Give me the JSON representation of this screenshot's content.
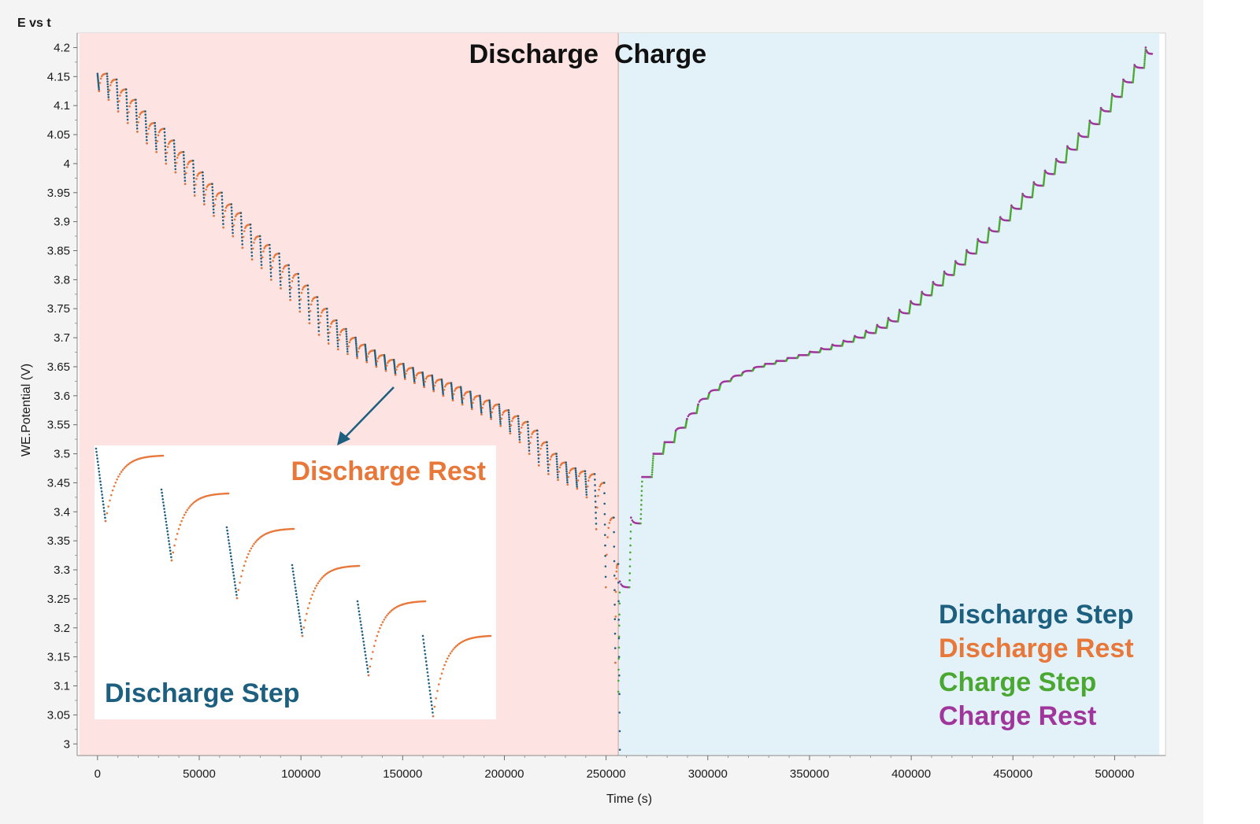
{
  "chart_data": {
    "type": "scatter",
    "title": "E vs t",
    "xlabel": "Time (s)",
    "ylabel": "WE.Potential (V)",
    "xlim": [
      -10000,
      525000
    ],
    "ylim": [
      2.98,
      4.225
    ],
    "xticks": [
      "0",
      "50000",
      "100000",
      "150000",
      "200000",
      "250000",
      "300000",
      "350000",
      "400000",
      "450000",
      "500000"
    ],
    "yticks": [
      "3",
      "3.05",
      "3.1",
      "3.15",
      "3.2",
      "3.25",
      "3.3",
      "3.35",
      "3.4",
      "3.45",
      "3.5",
      "3.55",
      "3.6",
      "3.65",
      "3.7",
      "3.75",
      "3.8",
      "3.85",
      "3.9",
      "3.95",
      "4",
      "4.05",
      "4.1",
      "4.15",
      "4.2"
    ],
    "regions": [
      {
        "label": "Discharge",
        "x": [
          -9000,
          256000
        ],
        "color": "#fde4e3"
      },
      {
        "label": "Charge",
        "x": [
          256000,
          522000
        ],
        "color": "#e3f2f9"
      }
    ],
    "series": [
      {
        "name": "Discharge Step",
        "color": "#1d5f7f",
        "x": [
          0,
          4700,
          9400,
          14100,
          18800,
          23500,
          28200,
          32900,
          37600,
          42300,
          47000,
          51700,
          56400,
          61100,
          65800,
          70500,
          75200,
          79900,
          84600,
          89300,
          94000,
          98700,
          103400,
          108100,
          112800,
          117500,
          122200,
          126900,
          131600,
          136300,
          141000,
          145700,
          150400,
          155100,
          159800,
          164500,
          169200,
          173900,
          178600,
          183300,
          188000,
          192700,
          197400,
          202100,
          206800,
          211500,
          216200,
          220900,
          225600,
          230300,
          235000,
          239700,
          244400,
          249100,
          253800,
          256000
        ],
        "y_rest_start": [
          4.155,
          4.145,
          4.128,
          4.11,
          4.09,
          4.07,
          4.06,
          4.04,
          4.02,
          4.005,
          3.985,
          3.965,
          3.95,
          3.93,
          3.915,
          3.895,
          3.875,
          3.86,
          3.845,
          3.825,
          3.81,
          3.79,
          3.77,
          3.75,
          3.73,
          3.715,
          3.7,
          3.688,
          3.678,
          3.67,
          3.662,
          3.655,
          3.648,
          3.64,
          3.635,
          3.628,
          3.622,
          3.615,
          3.607,
          3.6,
          3.592,
          3.585,
          3.575,
          3.565,
          3.555,
          3.54,
          3.52,
          3.5,
          3.485,
          3.475,
          3.47,
          3.465,
          3.45,
          3.39,
          3.31,
          3.18
        ],
        "y_step_end": [
          4.125,
          4.11,
          4.09,
          4.07,
          4.055,
          4.035,
          4.02,
          4.0,
          3.985,
          3.965,
          3.945,
          3.93,
          3.91,
          3.89,
          3.875,
          3.855,
          3.835,
          3.82,
          3.8,
          3.785,
          3.765,
          3.745,
          3.725,
          3.705,
          3.69,
          3.68,
          3.672,
          3.665,
          3.658,
          3.65,
          3.643,
          3.636,
          3.629,
          3.622,
          3.615,
          3.608,
          3.6,
          3.592,
          3.585,
          3.577,
          3.568,
          3.56,
          3.548,
          3.535,
          3.52,
          3.5,
          3.48,
          3.465,
          3.455,
          3.447,
          3.44,
          3.425,
          3.37,
          3.27,
          3.14,
          2.99
        ]
      },
      {
        "name": "Discharge Rest",
        "color": "#e8773a"
      },
      {
        "name": "Charge Step",
        "color": "#4aa832",
        "x": [
          256000,
          261500,
          267000,
          272500,
          278000,
          283500,
          289000,
          294500,
          300000,
          305500,
          311000,
          316500,
          322000,
          327500,
          333000,
          338500,
          344000,
          349500,
          355000,
          360500,
          366000,
          371500,
          377000,
          382500,
          388000,
          393500,
          399000,
          404500,
          410000,
          415500,
          421000,
          426500,
          432000,
          437500,
          443000,
          448500,
          454000,
          459500,
          465000,
          470500,
          476000,
          481500,
          487000,
          492500,
          498000,
          503500,
          509000,
          514500
        ],
        "y_rest_start": [
          3.09,
          3.27,
          3.38,
          3.46,
          3.5,
          3.52,
          3.545,
          3.57,
          3.595,
          3.61,
          3.625,
          3.635,
          3.643,
          3.65,
          3.655,
          3.66,
          3.665,
          3.67,
          3.675,
          3.68,
          3.686,
          3.693,
          3.7,
          3.708,
          3.717,
          3.728,
          3.742,
          3.757,
          3.773,
          3.79,
          3.808,
          3.826,
          3.845,
          3.864,
          3.883,
          3.902,
          3.922,
          3.942,
          3.962,
          3.982,
          4.002,
          4.024,
          4.046,
          4.068,
          4.09,
          4.115,
          4.14,
          4.165
        ],
        "y_step_end": [
          3.28,
          3.39,
          3.46,
          3.5,
          3.52,
          3.54,
          3.56,
          3.585,
          3.605,
          3.62,
          3.63,
          3.64,
          3.648,
          3.655,
          3.66,
          3.665,
          3.67,
          3.676,
          3.682,
          3.688,
          3.695,
          3.703,
          3.712,
          3.722,
          3.734,
          3.748,
          3.763,
          3.779,
          3.796,
          3.814,
          3.832,
          3.851,
          3.87,
          3.889,
          3.908,
          3.928,
          3.948,
          3.968,
          3.988,
          4.008,
          4.03,
          4.052,
          4.074,
          4.096,
          4.12,
          4.145,
          4.17,
          4.2
        ]
      },
      {
        "name": "Charge Rest",
        "color": "#a0359b"
      }
    ],
    "annotations": {
      "discharge_label": "Discharge",
      "charge_label": "Charge",
      "inset_rest_label": "Discharge Rest",
      "inset_step_label": "Discharge Step",
      "legend": [
        "Discharge Step",
        "Discharge Rest",
        "Charge Step",
        "Charge Rest"
      ]
    },
    "grid": false,
    "legend_position": "bottom-right"
  }
}
